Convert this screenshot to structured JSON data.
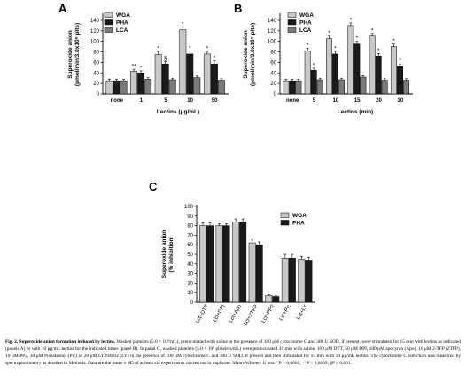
{
  "chart_data": [
    {
      "panel": "A",
      "type": "bar",
      "ylabel": "Superoxide anion (pmol/min/3.0x10⁸ plts)",
      "xlabel": "Lectins (μg/mL)",
      "categories": [
        "none",
        "1",
        "5",
        "10",
        "50"
      ],
      "ylim": [
        0,
        150
      ],
      "yticks": [
        0,
        20,
        40,
        60,
        80,
        100,
        120,
        140
      ],
      "legend": "top-left",
      "series": [
        {
          "name": "WGA",
          "color": "#c8c8c8",
          "values": [
            25,
            43,
            75,
            122,
            76
          ],
          "errors": [
            3,
            4,
            6,
            5,
            5
          ],
          "marks": [
            "",
            "**",
            "*",
            "*",
            "*"
          ]
        },
        {
          "name": "PHA",
          "color": "#1a1a1a",
          "values": [
            25,
            40,
            57,
            76,
            57
          ],
          "errors": [
            3,
            4,
            5,
            6,
            6
          ],
          "marks": [
            "",
            "*",
            "§",
            "*",
            "*"
          ]
        },
        {
          "name": "LCA",
          "color": "#7a7a7a",
          "values": [
            25,
            28,
            27,
            31,
            26
          ],
          "errors": [
            3,
            3,
            3,
            3,
            3
          ],
          "marks": [
            "",
            "",
            "",
            "",
            ""
          ]
        }
      ]
    },
    {
      "panel": "B",
      "type": "bar",
      "ylabel": "Superoxide anion (pmol/min/3.0x10⁸ plts)",
      "xlabel": "Lectins (min)",
      "categories": [
        "none",
        "5",
        "10",
        "15",
        "20",
        "30"
      ],
      "ylim": [
        0,
        150
      ],
      "yticks": [
        0,
        20,
        40,
        60,
        80,
        100,
        120,
        140
      ],
      "legend": "top-right",
      "series": [
        {
          "name": "WGA",
          "color": "#c8c8c8",
          "values": [
            25,
            82,
            105,
            130,
            110,
            90
          ],
          "errors": [
            3,
            5,
            5,
            5,
            5,
            5
          ],
          "marks": [
            "",
            "*",
            "*",
            "*",
            "*",
            "*"
          ]
        },
        {
          "name": "PHA",
          "color": "#1a1a1a",
          "values": [
            25,
            45,
            76,
            95,
            72,
            52
          ],
          "errors": [
            3,
            4,
            5,
            5,
            5,
            5
          ],
          "marks": [
            "",
            "*",
            "*",
            "*",
            "*",
            "*"
          ]
        },
        {
          "name": "LCA",
          "color": "#7a7a7a",
          "values": [
            25,
            27,
            27,
            32,
            26,
            26
          ],
          "errors": [
            3,
            3,
            3,
            3,
            3,
            3
          ],
          "marks": [
            "",
            "",
            "",
            "",
            "",
            ""
          ]
        }
      ]
    },
    {
      "panel": "C",
      "type": "bar",
      "ylabel": "Superoxide anion (% inhibition)",
      "xlabel": "",
      "categories": [
        "Lct+DTT",
        "Lct+DPI",
        "Lct+Apo",
        "Lct+2TFP",
        "Lct+PP2",
        "Lct+Pic",
        "Lct+LY"
      ],
      "ylim": [
        0,
        100
      ],
      "yticks": [
        0,
        10,
        20,
        30,
        40,
        50,
        60,
        70,
        80,
        90,
        100
      ],
      "legend": "top-right",
      "series": [
        {
          "name": "WGA",
          "color": "#c8c8c8",
          "values": [
            80,
            80,
            84,
            62,
            7,
            46,
            45
          ],
          "errors": [
            3,
            2,
            3,
            3,
            1,
            4,
            3
          ]
        },
        {
          "name": "PHA",
          "color": "#1a1a1a",
          "values": [
            80,
            80,
            84,
            60,
            6,
            46,
            44
          ],
          "errors": [
            3,
            2,
            3,
            3,
            1,
            4,
            3
          ]
        }
      ]
    }
  ],
  "caption": {
    "fig_label": "Fig. 2.",
    "title": "Superoxide anion formation induced by lectins.",
    "body": "Washed platelets (5.0 × 10⁸/mL), preincubated with saline in the presence of 100 μM cytochrome C and 300 U SOD, if present, were stimulated for 15 min with lectins as indicated (panels A) or with 10 μg/mL lectins for the indicated times (panel B). In panel C, washed platelets (5.0 × 10⁸ platelets/mL) were preincubated 10 min with saline, 100 μM DTT, 50 μM DPI, 100 μM apocynin (Apo), 10 μM 2-TFP (2TFP), 10 μM PP2, 30 μM Piceatannol (Pic) or 20 μM LY294002 (LY) in the presence of 100 μM cytochrome C and 300 U SOD, if present and then stimulated for 15 min with 10 μg/mL lectins. The cytochrome C reduction was measured by spectrophotometry as detailed in Methods. Data are the mean ± SD of at least six experiments carried out in duplicate. Mann-Whitney U test: *P < 0,0001, **P < 0,0005, §P ≤ 0,001."
  }
}
